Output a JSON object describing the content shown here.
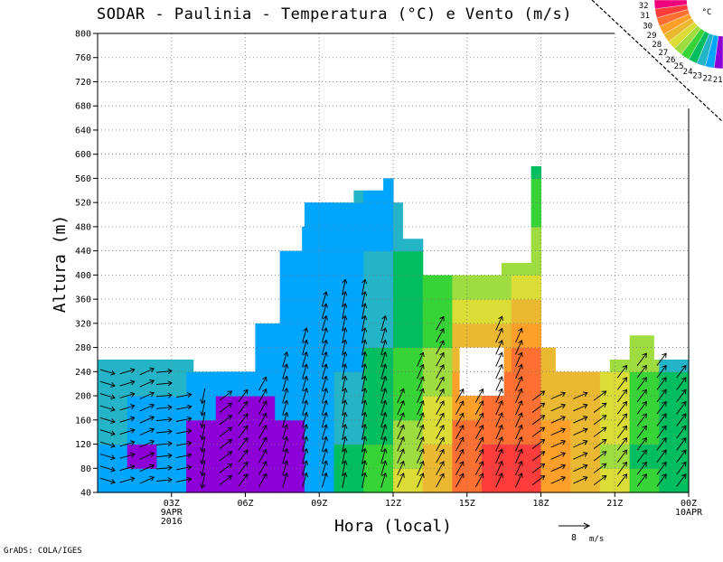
{
  "chart_data": {
    "type": "heatmap",
    "title": "SODAR - Paulinia - Temperatura (°C) e Vento (m/s)",
    "xlabel": "Hora (local)",
    "ylabel": "Altura (m)",
    "ylim": [
      40,
      800
    ],
    "y_ticks": [
      40,
      80,
      120,
      160,
      200,
      240,
      280,
      320,
      360,
      400,
      440,
      480,
      520,
      560,
      600,
      640,
      680,
      720,
      760,
      800
    ],
    "x_ticks": [
      {
        "hour": 3,
        "label": "03Z",
        "sub1": "9APR",
        "sub2": "2016"
      },
      {
        "hour": 6,
        "label": "06Z",
        "sub1": "",
        "sub2": ""
      },
      {
        "hour": 9,
        "label": "09Z",
        "sub1": "",
        "sub2": ""
      },
      {
        "hour": 12,
        "label": "12Z",
        "sub1": "",
        "sub2": ""
      },
      {
        "hour": 15,
        "label": "15Z",
        "sub1": "",
        "sub2": ""
      },
      {
        "hour": 18,
        "label": "18Z",
        "sub1": "",
        "sub2": ""
      },
      {
        "hour": 21,
        "label": "21Z",
        "sub1": "",
        "sub2": ""
      },
      {
        "hour": 24,
        "label": "00Z",
        "sub1": "10APR",
        "sub2": ""
      }
    ],
    "xlim_hours": [
      0,
      24
    ],
    "grid": true,
    "colorbar": {
      "unit": "°C",
      "labels": [
        "32",
        "31",
        "30",
        "29",
        "28",
        "27",
        "26",
        "25",
        "24",
        "23",
        "22",
        "21"
      ],
      "colors": [
        "#f0007a",
        "#fe3c3c",
        "#fe7032",
        "#fe9f2a",
        "#ebb832",
        "#dcdc36",
        "#9fdc40",
        "#38d437",
        "#00be5f",
        "#24b4c8",
        "#00a5fe",
        "#8d00d8"
      ]
    },
    "wind_reference": {
      "value": "8",
      "unit": "m/s"
    },
    "column_tops_m": [
      [
        0,
        260
      ],
      [
        3.9,
        240
      ],
      [
        6,
        240
      ],
      [
        6.4,
        320
      ],
      [
        7.4,
        440
      ],
      [
        8.3,
        520
      ],
      [
        10.4,
        540
      ],
      [
        11.6,
        560
      ],
      [
        12.4,
        460
      ],
      [
        13.4,
        400
      ],
      [
        15.6,
        400
      ],
      [
        16.4,
        420
      ],
      [
        17.2,
        420
      ],
      [
        17.6,
        580
      ],
      [
        18.6,
        240
      ],
      [
        20.8,
        260
      ],
      [
        21.6,
        300
      ],
      [
        22.6,
        260
      ],
      [
        24,
        260
      ]
    ],
    "missing_box": {
      "x_hours": [
        14.7,
        16.5
      ],
      "y_m": [
        200,
        280
      ]
    },
    "temperature_cells_degC": [
      {
        "x_hours": [
          0,
          1.2
        ],
        "values_bottom_to_top": [
          22,
          22,
          23,
          23,
          23,
          23
        ]
      },
      {
        "x_hours": [
          1.2,
          2.4
        ],
        "values_bottom_to_top": [
          22,
          21,
          22,
          22,
          23,
          23
        ]
      },
      {
        "x_hours": [
          2.4,
          3.6
        ],
        "values_bottom_to_top": [
          22,
          22,
          22,
          22,
          23,
          23
        ]
      },
      {
        "x_hours": [
          3.6,
          4.8
        ],
        "values_bottom_to_top": [
          21,
          21,
          21,
          22,
          22,
          23
        ]
      },
      {
        "x_hours": [
          4.8,
          6.0
        ],
        "values_bottom_to_top": [
          21,
          21,
          21,
          21,
          22,
          22
        ]
      },
      {
        "x_hours": [
          6.0,
          7.2
        ],
        "values_bottom_to_top": [
          21,
          21,
          21,
          21,
          22,
          22,
          22
        ]
      },
      {
        "x_hours": [
          7.2,
          8.4
        ],
        "values_bottom_to_top": [
          21,
          21,
          21,
          22,
          22,
          22,
          22,
          22,
          22,
          22,
          22
        ]
      },
      {
        "x_hours": [
          8.4,
          9.6
        ],
        "values_bottom_to_top": [
          22,
          22,
          22,
          22,
          22,
          22,
          22,
          22,
          22,
          22,
          22,
          22,
          22
        ]
      },
      {
        "x_hours": [
          9.6,
          10.8
        ],
        "values_bottom_to_top": [
          24,
          24,
          23,
          23,
          23,
          22,
          22,
          22,
          22,
          22,
          22,
          22,
          23
        ]
      },
      {
        "x_hours": [
          10.8,
          12.0
        ],
        "values_bottom_to_top": [
          25,
          25,
          24,
          24,
          24,
          24,
          23,
          23,
          23,
          23,
          22,
          22,
          22,
          22
        ]
      },
      {
        "x_hours": [
          12.0,
          13.2
        ],
        "values_bottom_to_top": [
          27,
          26,
          26,
          25,
          25,
          25,
          24,
          24,
          24,
          24,
          23,
          23
        ]
      },
      {
        "x_hours": [
          13.2,
          14.4
        ],
        "values_bottom_to_top": [
          28,
          28,
          27,
          27,
          26,
          26,
          25,
          25,
          25
        ]
      },
      {
        "x_hours": [
          14.4,
          15.6
        ],
        "values_bottom_to_top": [
          30,
          30,
          30,
          29,
          29,
          28,
          28,
          27,
          26
        ]
      },
      {
        "x_hours": [
          15.6,
          16.8
        ],
        "values_bottom_to_top": [
          31,
          31,
          30,
          30,
          30,
          29,
          28,
          27,
          26,
          26
        ]
      },
      {
        "x_hours": [
          16.8,
          18.0
        ],
        "values_bottom_to_top": [
          31,
          31,
          30,
          30,
          30,
          30,
          29,
          28,
          27,
          26,
          26,
          25,
          25,
          24
        ]
      },
      {
        "x_hours": [
          18.0,
          19.2
        ],
        "values_bottom_to_top": [
          29,
          29,
          29,
          28,
          28,
          28
        ]
      },
      {
        "x_hours": [
          19.2,
          20.4
        ],
        "values_bottom_to_top": [
          28,
          28,
          28,
          28,
          28
        ]
      },
      {
        "x_hours": [
          20.4,
          21.6
        ],
        "values_bottom_to_top": [
          27,
          26,
          27,
          27,
          27,
          26
        ]
      },
      {
        "x_hours": [
          21.6,
          22.8
        ],
        "values_bottom_to_top": [
          25,
          24,
          25,
          25,
          25,
          26,
          26
        ]
      },
      {
        "x_hours": [
          22.8,
          24.0
        ],
        "values_bottom_to_top": [
          24,
          24,
          24,
          24,
          24,
          23
        ]
      }
    ],
    "wind_columns": [
      {
        "hour": 0.4,
        "top_m": 240,
        "u": 1.0,
        "v": -0.3
      },
      {
        "hour": 1.2,
        "top_m": 240,
        "u": 1.0,
        "v": 0.3
      },
      {
        "hour": 2.0,
        "top_m": 240,
        "u": 0.9,
        "v": 0.4
      },
      {
        "hour": 2.7,
        "top_m": 240,
        "u": 1.0,
        "v": 0.1
      },
      {
        "hour": 3.5,
        "top_m": 200,
        "u": 1.0,
        "v": 0.2
      },
      {
        "hour": 4.3,
        "top_m": 200,
        "u": -0.2,
        "v": -1.0
      },
      {
        "hour": 5.2,
        "top_m": 200,
        "u": 0.8,
        "v": 0.6
      },
      {
        "hour": 5.9,
        "top_m": 200,
        "u": 0.6,
        "v": 0.8
      },
      {
        "hour": 6.7,
        "top_m": 220,
        "u": 0.5,
        "v": 0.9
      },
      {
        "hour": 7.6,
        "top_m": 260,
        "u": 0.3,
        "v": 1.0
      },
      {
        "hour": 8.4,
        "top_m": 300,
        "u": 0.3,
        "v": 1.0
      },
      {
        "hour": 9.2,
        "top_m": 360,
        "u": 0.3,
        "v": 1.0
      },
      {
        "hour": 10.0,
        "top_m": 380,
        "u": 0.2,
        "v": 1.0
      },
      {
        "hour": 10.8,
        "top_m": 380,
        "u": 0.2,
        "v": 1.0
      },
      {
        "hour": 11.6,
        "top_m": 320,
        "u": 0.3,
        "v": 1.0
      },
      {
        "hour": 12.3,
        "top_m": 200,
        "u": 0.4,
        "v": 0.9
      },
      {
        "hour": 13.1,
        "top_m": 260,
        "u": 0.4,
        "v": 0.9
      },
      {
        "hour": 13.9,
        "top_m": 320,
        "u": 0.5,
        "v": 0.9
      },
      {
        "hour": 14.7,
        "top_m": 200,
        "u": 0.5,
        "v": 0.9
      },
      {
        "hour": 15.5,
        "top_m": 200,
        "u": 0.5,
        "v": 0.9
      },
      {
        "hour": 16.3,
        "top_m": 320,
        "u": 0.4,
        "v": 0.9
      },
      {
        "hour": 17.1,
        "top_m": 300,
        "u": 0.4,
        "v": 0.9
      },
      {
        "hour": 17.9,
        "top_m": 200,
        "u": 0.8,
        "v": 0.6
      },
      {
        "hour": 18.7,
        "top_m": 200,
        "u": 0.9,
        "v": 0.4
      },
      {
        "hour": 19.6,
        "top_m": 200,
        "u": 0.9,
        "v": 0.4
      },
      {
        "hour": 20.4,
        "top_m": 200,
        "u": 0.8,
        "v": 0.6
      },
      {
        "hour": 21.3,
        "top_m": 240,
        "u": 0.6,
        "v": 0.8
      },
      {
        "hour": 22.1,
        "top_m": 260,
        "u": 0.6,
        "v": 0.8
      },
      {
        "hour": 22.9,
        "top_m": 260,
        "u": 0.6,
        "v": 0.8
      },
      {
        "hour": 23.7,
        "top_m": 240,
        "u": 0.6,
        "v": 0.8
      }
    ]
  },
  "footer": {
    "credit": "GrADS: COLA/IGES"
  }
}
